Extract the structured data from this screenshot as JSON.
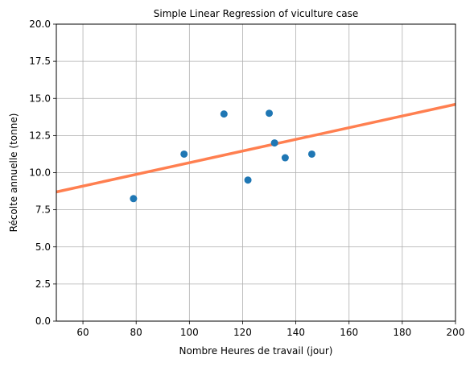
{
  "chart_data": {
    "type": "scatter",
    "title": "Simple Linear Regression of viculture case",
    "xlabel": "Nombre Heures de travail (jour)",
    "ylabel": "Récolte annuelle (tonne)",
    "xlim": [
      50,
      200
    ],
    "ylim": [
      0,
      20
    ],
    "grid": true,
    "x_ticks": [
      60,
      80,
      100,
      120,
      140,
      160,
      180,
      200
    ],
    "y_ticks": [
      0,
      2.5,
      5,
      7.5,
      10,
      12.5,
      15,
      17.5,
      20
    ],
    "x_tick_labels": [
      "60",
      "80",
      "100",
      "120",
      "140",
      "160",
      "180",
      "200"
    ],
    "y_tick_labels": [
      "0.0",
      "2.5",
      "5.0",
      "7.5",
      "10.0",
      "12.5",
      "15.0",
      "17.5",
      "20.0"
    ],
    "series": [
      {
        "name": "observations",
        "kind": "scatter",
        "color": "#1f77b4",
        "points": [
          {
            "x": 79,
            "y": 8.25
          },
          {
            "x": 98,
            "y": 11.25
          },
          {
            "x": 113,
            "y": 13.95
          },
          {
            "x": 122,
            "y": 9.5
          },
          {
            "x": 130,
            "y": 14.0
          },
          {
            "x": 132,
            "y": 12.0
          },
          {
            "x": 136,
            "y": 11.0
          },
          {
            "x": 146,
            "y": 11.25
          }
        ]
      },
      {
        "name": "regression line",
        "kind": "line",
        "color": "#ff7f50",
        "points": [
          {
            "x": 50,
            "y": 8.7
          },
          {
            "x": 200,
            "y": 14.6
          }
        ]
      }
    ]
  }
}
